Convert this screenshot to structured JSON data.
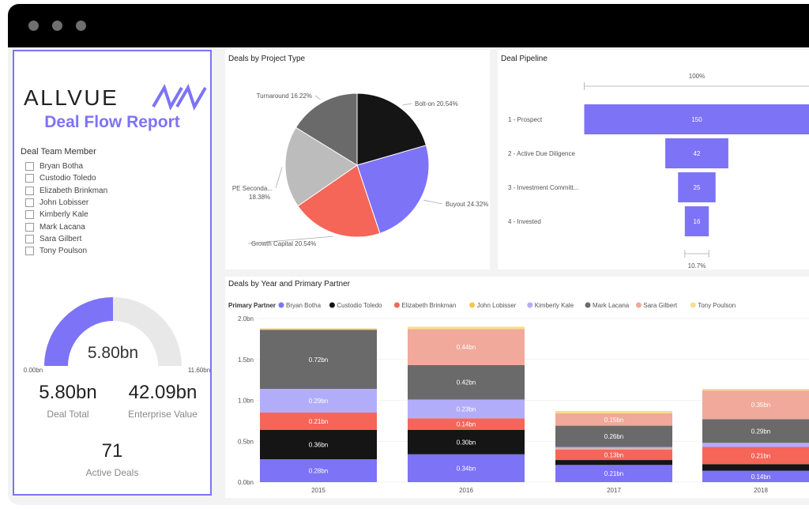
{
  "window": {
    "controls": [
      "close",
      "minimize",
      "maximize"
    ]
  },
  "report": {
    "logo_text": "ALLVUE",
    "title": "Deal Flow Report"
  },
  "slicer": {
    "title": "Deal Team Member",
    "items": [
      "Bryan Botha",
      "Custodio Toledo",
      "Elizabeth Brinkman",
      "John Lobisser",
      "Kimberly Kale",
      "Mark Lacana",
      "Sara Gilbert",
      "Tony Poulson"
    ]
  },
  "gauge": {
    "value_label": "5.80bn",
    "min_label": "0.00bn",
    "max_label": "11.60bn",
    "value": 5.8,
    "min": 0,
    "max": 11.6
  },
  "kpis": {
    "deal_total": {
      "value": "5.80bn",
      "label": "Deal Total"
    },
    "enterprise_value": {
      "value": "42.09bn",
      "label": "Enterprise Value"
    },
    "active_deals": {
      "value": "71",
      "label": "Active Deals"
    }
  },
  "colors": {
    "accent": "#7d73f7",
    "Bryan Botha": "#7d73f7",
    "Custodio Toledo": "#151515",
    "Elizabeth Brinkman": "#f56558",
    "John Lobisser": "#f5c64a",
    "Kimberly Kale": "#b2adf9",
    "Mark Lacana": "#6a6a6a",
    "Sara Gilbert": "#f0a99a",
    "Tony Poulson": "#f7dd8c"
  },
  "chart_data": [
    {
      "type": "pie",
      "title": "Deals by Project Type",
      "slices": [
        {
          "label": "Bolt-on",
          "value": 20.54,
          "display": "Bolt-on 20.54%",
          "color": "#151515"
        },
        {
          "label": "Buyout",
          "value": 24.32,
          "display": "Buyout 24.32%",
          "color": "#7d73f7"
        },
        {
          "label": "Growth Capital",
          "value": 20.54,
          "display": "Growth Capital 20.54%",
          "color": "#f56558"
        },
        {
          "label": "PE Seconda...",
          "value": 18.38,
          "display": "PE Seconda...",
          "display2": "18.38%",
          "color": "#bcbcbc"
        },
        {
          "label": "Turnaround",
          "value": 16.22,
          "display": "Turnaround 16.22%",
          "color": "#6a6a6a"
        }
      ]
    },
    {
      "type": "bar",
      "subtype": "funnel",
      "title": "Deal Pipeline",
      "top_label": "100%",
      "bottom_label": "10.7%",
      "categories": [
        "1 - Prospect",
        "2 - Active Due Diligence",
        "3 - Investment Committ...",
        "4 - Invested"
      ],
      "values": [
        150,
        42,
        25,
        16
      ]
    },
    {
      "type": "bar",
      "subtype": "stacked",
      "title": "Deals by Year and Primary Partner",
      "legend_title": "Primary Partner",
      "legend_position": "top",
      "categories": [
        "2015",
        "2016",
        "2017",
        "2018"
      ],
      "y_ticks": [
        "0.0bn",
        "0.5bn",
        "1.0bn",
        "1.5bn",
        "2.0bn"
      ],
      "ylim": [
        0,
        2.0
      ],
      "series": [
        {
          "name": "Bryan Botha",
          "values": [
            0.28,
            0.34,
            0.21,
            0.14
          ],
          "labels": [
            "0.28bn",
            "0.34bn",
            "0.21bn",
            "0.14bn"
          ]
        },
        {
          "name": "Custodio Toledo",
          "values": [
            0.36,
            0.3,
            0.06,
            0.08
          ],
          "labels": [
            "0.36bn",
            "0.30bn",
            "",
            ""
          ]
        },
        {
          "name": "Elizabeth Brinkman",
          "values": [
            0.21,
            0.14,
            0.13,
            0.21
          ],
          "labels": [
            "0.21bn",
            "0.14bn",
            "0.13bn",
            "0.21bn"
          ]
        },
        {
          "name": "John Lobisser",
          "values": [
            0.0,
            0.0,
            0.01,
            0.0
          ],
          "labels": [
            "",
            "",
            "",
            ""
          ]
        },
        {
          "name": "Kimberly Kale",
          "values": [
            0.29,
            0.23,
            0.02,
            0.05
          ],
          "labels": [
            "0.29bn",
            "0.23bn",
            "",
            ""
          ]
        },
        {
          "name": "Mark Lacana",
          "values": [
            0.72,
            0.42,
            0.26,
            0.29
          ],
          "labels": [
            "0.72bn",
            "0.42bn",
            "0.26bn",
            "0.29bn"
          ]
        },
        {
          "name": "Sara Gilbert",
          "values": [
            0.01,
            0.44,
            0.15,
            0.35
          ],
          "labels": [
            "",
            "0.44bn",
            "0.15bn",
            "0.35bn"
          ]
        },
        {
          "name": "Tony Poulson",
          "values": [
            0.01,
            0.03,
            0.03,
            0.02
          ],
          "labels": [
            "",
            "",
            "",
            ""
          ]
        }
      ]
    }
  ]
}
